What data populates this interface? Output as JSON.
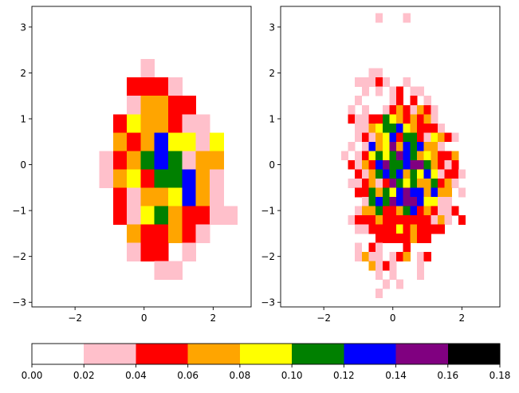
{
  "chart_data": [
    {
      "type": "heatmap",
      "name": "left",
      "title": "",
      "xlabel": "",
      "ylabel": "",
      "xlim": [
        -3.25,
        3.1
      ],
      "ylim": [
        -3.1,
        3.45
      ],
      "xticks": [
        -2,
        0,
        2
      ],
      "yticks": [
        -3,
        -2,
        -1,
        0,
        1,
        2,
        3
      ],
      "grid": false,
      "bin_size": [
        0.4,
        0.4
      ],
      "x_edges_start": -2.1,
      "y_edges_start": -2.5,
      "rows_from_top": [
        "000001000000",
        "000022210000",
        "000013322000",
        "000243321100",
        "000323644140",
        "001235651330",
        "001342556310",
        "000213346310",
        "000214532211",
        "000032232100",
        "000012201000",
        "000000110000"
      ]
    },
    {
      "type": "heatmap",
      "name": "right",
      "title": "",
      "xlabel": "",
      "ylabel": "",
      "xlim": [
        -3.25,
        3.1
      ],
      "ylim": [
        -3.1,
        3.45
      ],
      "xticks": [
        -2,
        0,
        2
      ],
      "yticks": [
        -3,
        -2,
        -1,
        0,
        1,
        2,
        3
      ],
      "grid": false,
      "bin_size": [
        0.2,
        0.2
      ],
      "x_edges_start": -3.1,
      "y_edges_start": -3.1,
      "rows_from_top": [
        "00000000000000000000000000000",
        "00000000000001000100000000000",
        "00000000000000000000000000000",
        "00000000000000000000000000000",
        "00000000000000000000000000000",
        "00000000000000000000000000000",
        "00000000000000000000000000000",
        "00000000000011000000000000000",
        "00000000001112100100000000000",
        "00000000000101012011000000000",
        "00000000001000012020100000000",
        "00000000010100123213210000000",
        "00000000021122543232310000000",
        "00000000001134556432221000000",
        "00000000001213462552143210000",
        "00000000010163473656331000000",
        "00000000101245457653432230000",
        "00000000021326755677532120000",
        "00000000002135656354641221000",
        "00000000011231275453352310000",
        "00000000002253546766363301000",
        "00000000000156576776441100000",
        "00000000001335223562321120000",
        "00000000012223222222213102000",
        "00000000001122224232222000000",
        "00000000000002222232200000000",
        "00000000001021000200000000000",
        "00000000001311012301200000000",
        "00000000000031210001000000000",
        "00000000000001010001000000000",
        "00000000000000101000000000000",
        "00000000000001000000000000000",
        "00000000000000000000000000000"
      ]
    },
    {
      "type": "colorbar",
      "name": "colorbar",
      "orientation": "horizontal",
      "boundaries": [
        0.0,
        0.02,
        0.04,
        0.06,
        0.08,
        0.1,
        0.12,
        0.14,
        0.16,
        0.18
      ],
      "tick_labels": [
        "0.00",
        "0.02",
        "0.04",
        "0.06",
        "0.08",
        "0.10",
        "0.12",
        "0.14",
        "0.16",
        "0.18"
      ],
      "colors": [
        "#ffffff",
        "#ffc0cb",
        "#ff0000",
        "#ffa500",
        "#ffff00",
        "#008000",
        "#0000ff",
        "#800080",
        "#000000"
      ]
    }
  ]
}
